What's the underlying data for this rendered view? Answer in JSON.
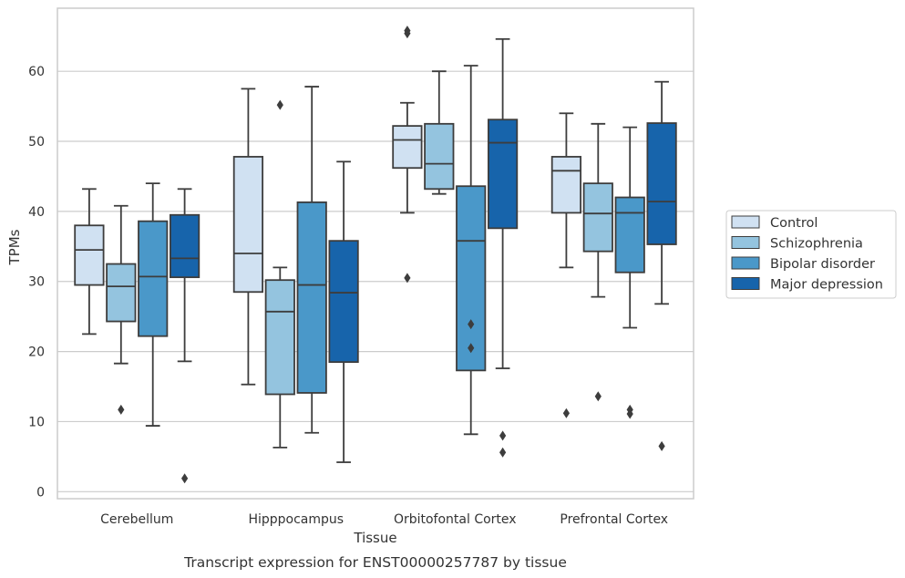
{
  "chart_data": {
    "type": "box",
    "xlabel": "Tissue",
    "ylabel": "TPMs",
    "caption": "Transcript expression for ENST00000257787 by tissue",
    "categories": [
      "Cerebellum",
      "Hipppocampus",
      "Orbitofontal Cortex",
      "Prefrontal Cortex"
    ],
    "ylim": [
      -1,
      69
    ],
    "yticks": [
      0,
      10,
      20,
      30,
      40,
      50,
      60
    ],
    "grid": "horizontal",
    "legend_position": "right",
    "series": [
      {
        "name": "Control",
        "color": "#d0e1f2",
        "boxes": [
          {
            "whisker_low": 22.5,
            "q1": 29.5,
            "median": 34.5,
            "q3": 38.0,
            "whisker_high": 43.2,
            "outliers": []
          },
          {
            "whisker_low": 15.3,
            "q1": 28.5,
            "median": 34.0,
            "q3": 47.8,
            "whisker_high": 57.5,
            "outliers": []
          },
          {
            "whisker_low": 39.8,
            "q1": 46.2,
            "median": 50.2,
            "q3": 52.2,
            "whisker_high": 55.5,
            "outliers": [
              30.5,
              65.4,
              65.8
            ]
          },
          {
            "whisker_low": 32.0,
            "q1": 39.8,
            "median": 45.8,
            "q3": 47.8,
            "whisker_high": 54.0,
            "outliers": [
              11.2
            ]
          }
        ]
      },
      {
        "name": "Schizophrenia",
        "color": "#94c4df",
        "boxes": [
          {
            "whisker_low": 18.3,
            "q1": 24.3,
            "median": 29.3,
            "q3": 32.5,
            "whisker_high": 40.8,
            "outliers": [
              11.7
            ]
          },
          {
            "whisker_low": 6.3,
            "q1": 13.9,
            "median": 25.7,
            "q3": 30.2,
            "whisker_high": 32.0,
            "outliers": [
              55.2
            ]
          },
          {
            "whisker_low": 42.5,
            "q1": 43.2,
            "median": 46.8,
            "q3": 52.5,
            "whisker_high": 60.0,
            "outliers": []
          },
          {
            "whisker_low": 27.8,
            "q1": 34.3,
            "median": 39.7,
            "q3": 44.0,
            "whisker_high": 52.5,
            "outliers": [
              13.6
            ]
          }
        ]
      },
      {
        "name": "Bipolar disorder",
        "color": "#4a98c9",
        "boxes": [
          {
            "whisker_low": 9.4,
            "q1": 22.2,
            "median": 30.7,
            "q3": 38.6,
            "whisker_high": 44.0,
            "outliers": []
          },
          {
            "whisker_low": 8.4,
            "q1": 14.1,
            "median": 29.5,
            "q3": 41.3,
            "whisker_high": 57.8,
            "outliers": []
          },
          {
            "whisker_low": 8.2,
            "q1": 17.3,
            "median": 35.8,
            "q3": 43.6,
            "whisker_high": 60.8,
            "outliers": [
              20.5,
              23.9
            ]
          },
          {
            "whisker_low": 23.4,
            "q1": 31.3,
            "median": 39.8,
            "q3": 42.0,
            "whisker_high": 52.0,
            "outliers": [
              11.1,
              11.7
            ]
          }
        ]
      },
      {
        "name": "Major depression",
        "color": "#1764ab",
        "boxes": [
          {
            "whisker_low": 18.6,
            "q1": 30.6,
            "median": 33.3,
            "q3": 39.5,
            "whisker_high": 43.2,
            "outliers": [
              1.9
            ]
          },
          {
            "whisker_low": 4.2,
            "q1": 18.5,
            "median": 28.4,
            "q3": 35.8,
            "whisker_high": 47.1,
            "outliers": []
          },
          {
            "whisker_low": 17.6,
            "q1": 37.6,
            "median": 49.8,
            "q3": 53.1,
            "whisker_high": 64.6,
            "outliers": [
              5.6,
              8.0
            ]
          },
          {
            "whisker_low": 26.8,
            "q1": 35.3,
            "median": 41.4,
            "q3": 52.6,
            "whisker_high": 58.5,
            "outliers": [
              6.5
            ]
          }
        ]
      }
    ]
  }
}
